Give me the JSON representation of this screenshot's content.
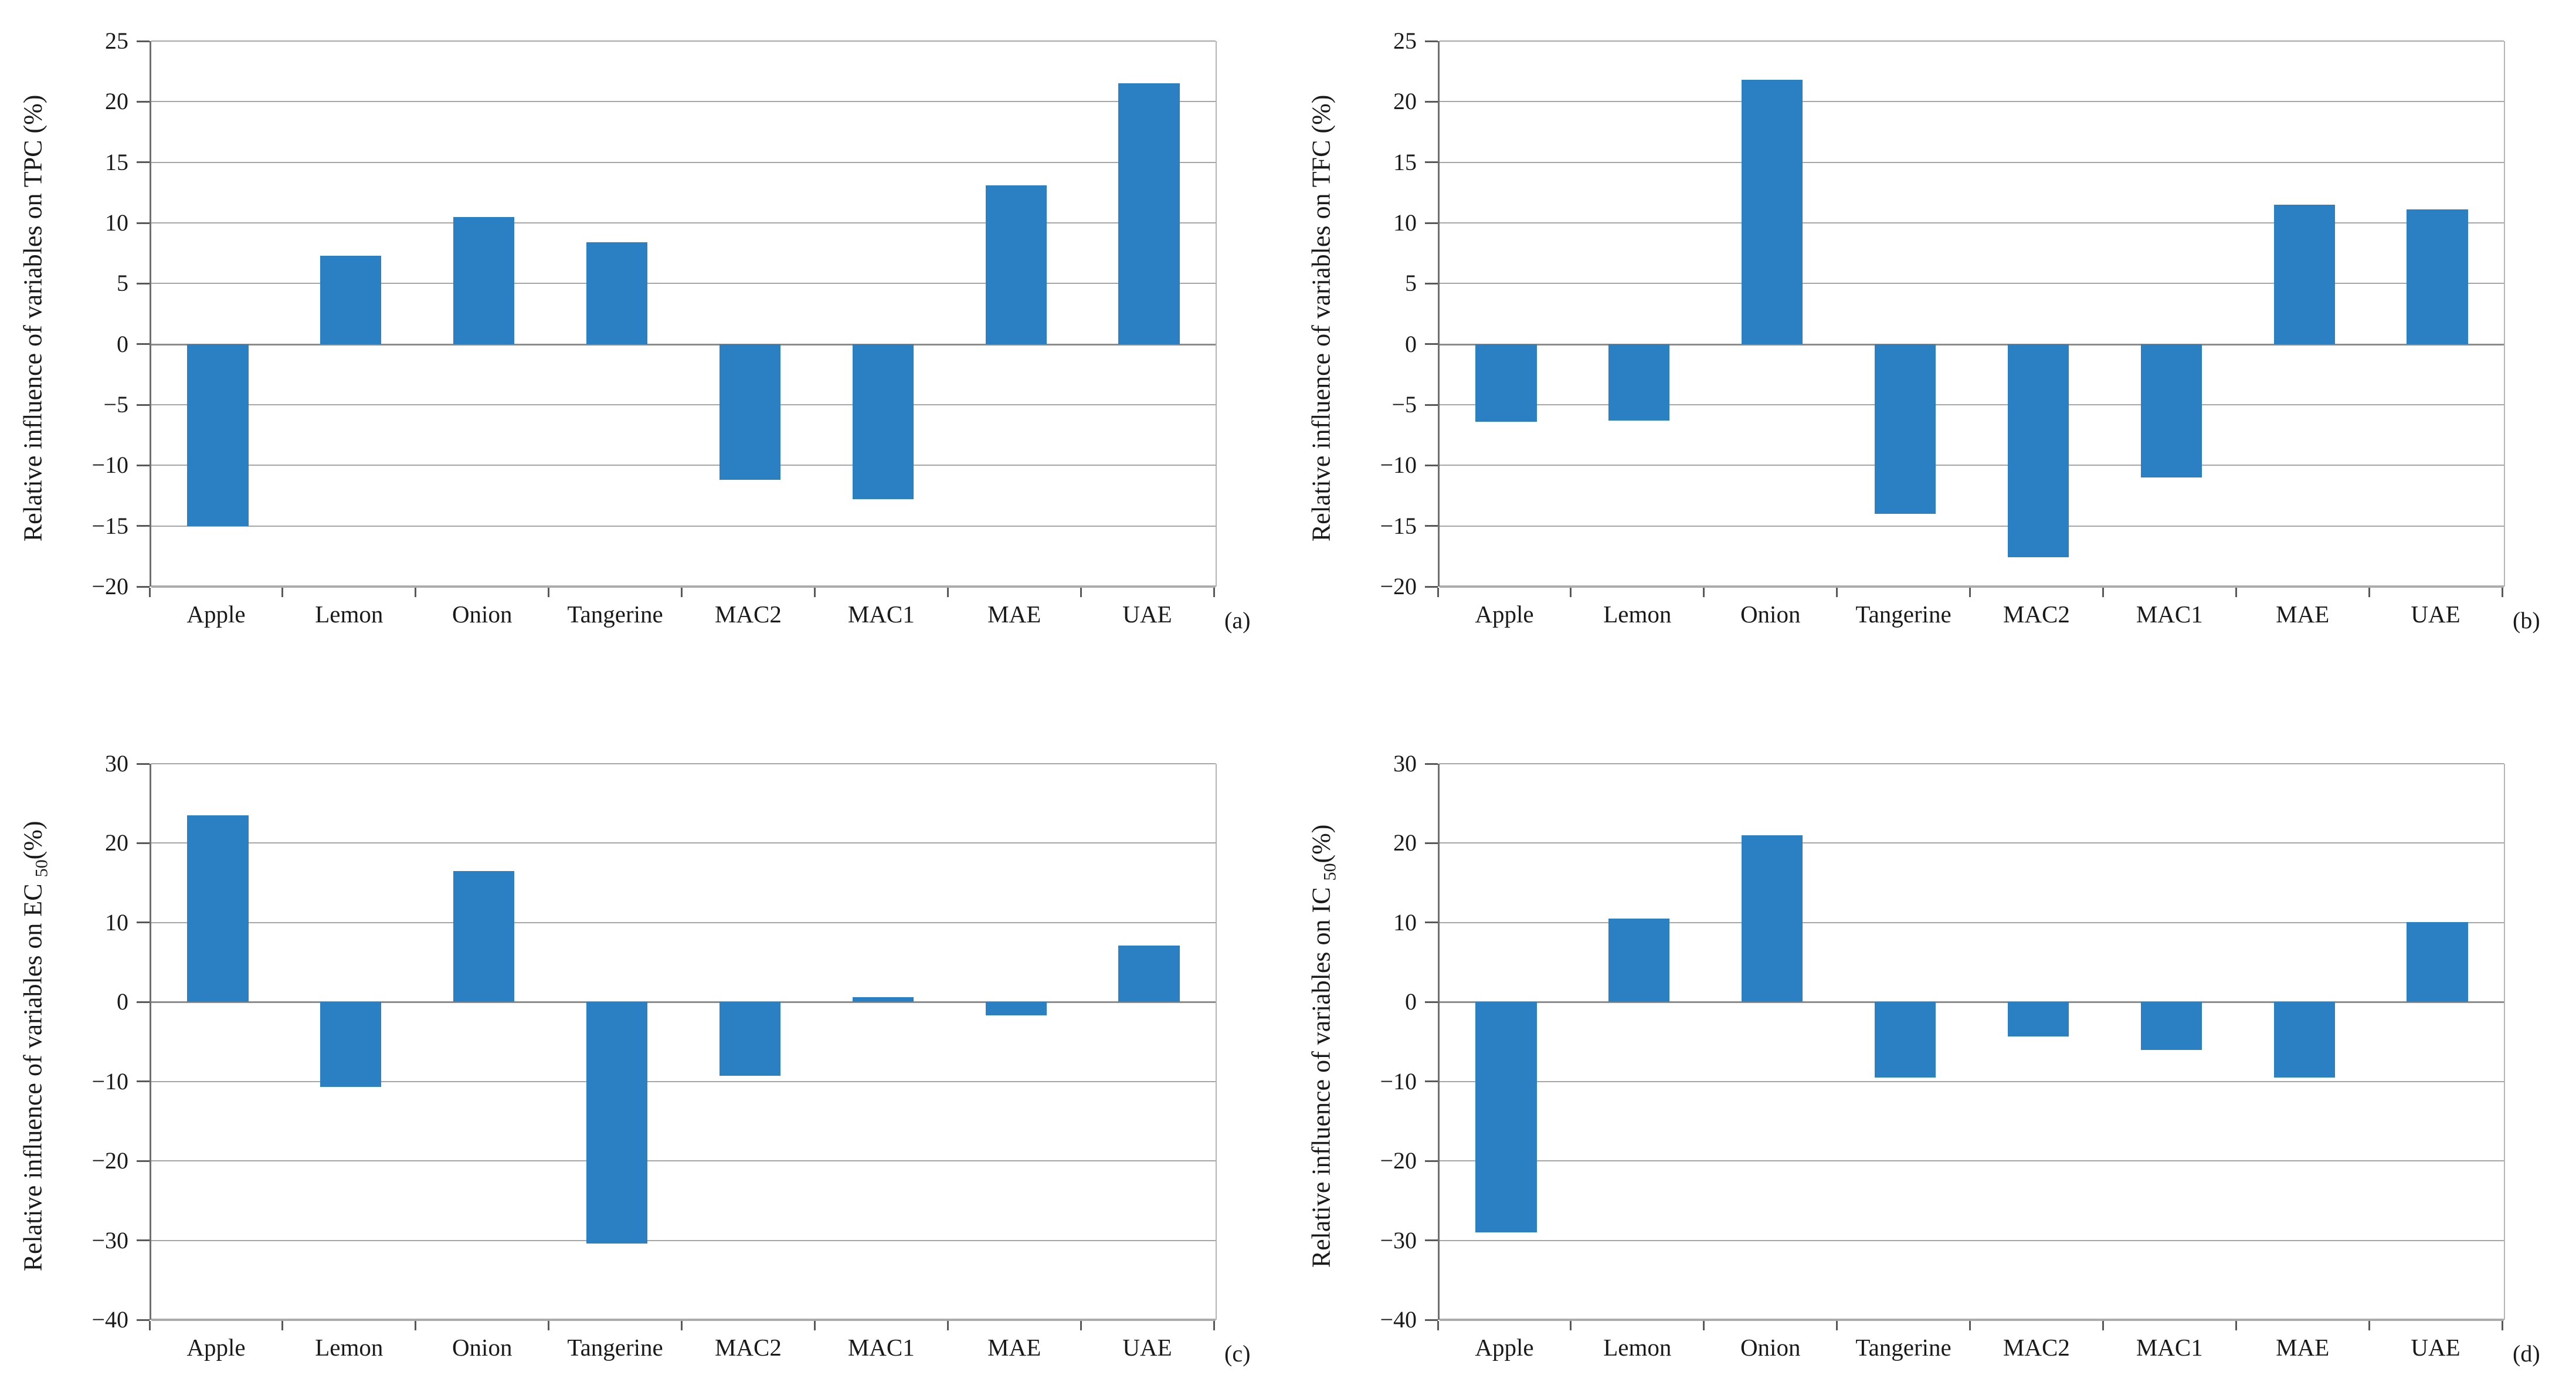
{
  "colors": {
    "bar": "#2b80c4",
    "gridline": "#a6a6a6",
    "zero_line": "#8c8c8c",
    "axis": "#6f6f6f",
    "text": "#1a1a1a"
  },
  "chart_data": [
    {
      "type": "bar",
      "panel_label": "(a)",
      "ylabel_prefix": "Relative influence of variables on TPC (%)",
      "ylabel_sub": "",
      "ylabel_tail": "",
      "categories": [
        "Apple",
        "Lemon",
        "Onion",
        "Tangerine",
        "MAC2",
        "MAC1",
        "MAE",
        "UAE"
      ],
      "values": [
        -15.0,
        7.3,
        10.5,
        8.4,
        -11.2,
        -12.8,
        13.1,
        21.5
      ],
      "ylim": [
        -20,
        25
      ],
      "ytick_step": 5,
      "grid": true,
      "legend": false
    },
    {
      "type": "bar",
      "panel_label": "(b)",
      "ylabel_prefix": "Relative influence of variables on TFC (%)",
      "ylabel_sub": "",
      "ylabel_tail": "",
      "categories": [
        "Apple",
        "Lemon",
        "Onion",
        "Tangerine",
        "MAC2",
        "MAC1",
        "MAE",
        "UAE"
      ],
      "values": [
        -6.4,
        -6.3,
        21.8,
        -14.0,
        -17.6,
        -11.0,
        11.5,
        11.1
      ],
      "ylim": [
        -20,
        25
      ],
      "ytick_step": 5,
      "grid": true,
      "legend": false
    },
    {
      "type": "bar",
      "panel_label": "(c)",
      "ylabel_prefix": "Relative influence of variables on EC ",
      "ylabel_sub": "50",
      "ylabel_tail": "(%)",
      "categories": [
        "Apple",
        "Lemon",
        "Onion",
        "Tangerine",
        "MAC2",
        "MAC1",
        "MAE",
        "UAE"
      ],
      "values": [
        23.5,
        -10.7,
        16.5,
        -30.4,
        -9.3,
        0.6,
        -1.7,
        7.1
      ],
      "ylim": [
        -40,
        30
      ],
      "ytick_step": 10,
      "grid": true,
      "legend": false
    },
    {
      "type": "bar",
      "panel_label": "(d)",
      "ylabel_prefix": "Relative influence of variables on IC ",
      "ylabel_sub": "50",
      "ylabel_tail": "(%)",
      "categories": [
        "Apple",
        "Lemon",
        "Onion",
        "Tangerine",
        "MAC2",
        "MAC1",
        "MAE",
        "UAE"
      ],
      "values": [
        -29.0,
        10.5,
        21.0,
        -9.5,
        -4.3,
        -6.0,
        -9.5,
        10.1
      ],
      "ylim": [
        -40,
        30
      ],
      "ytick_step": 10,
      "grid": true,
      "legend": false
    }
  ]
}
